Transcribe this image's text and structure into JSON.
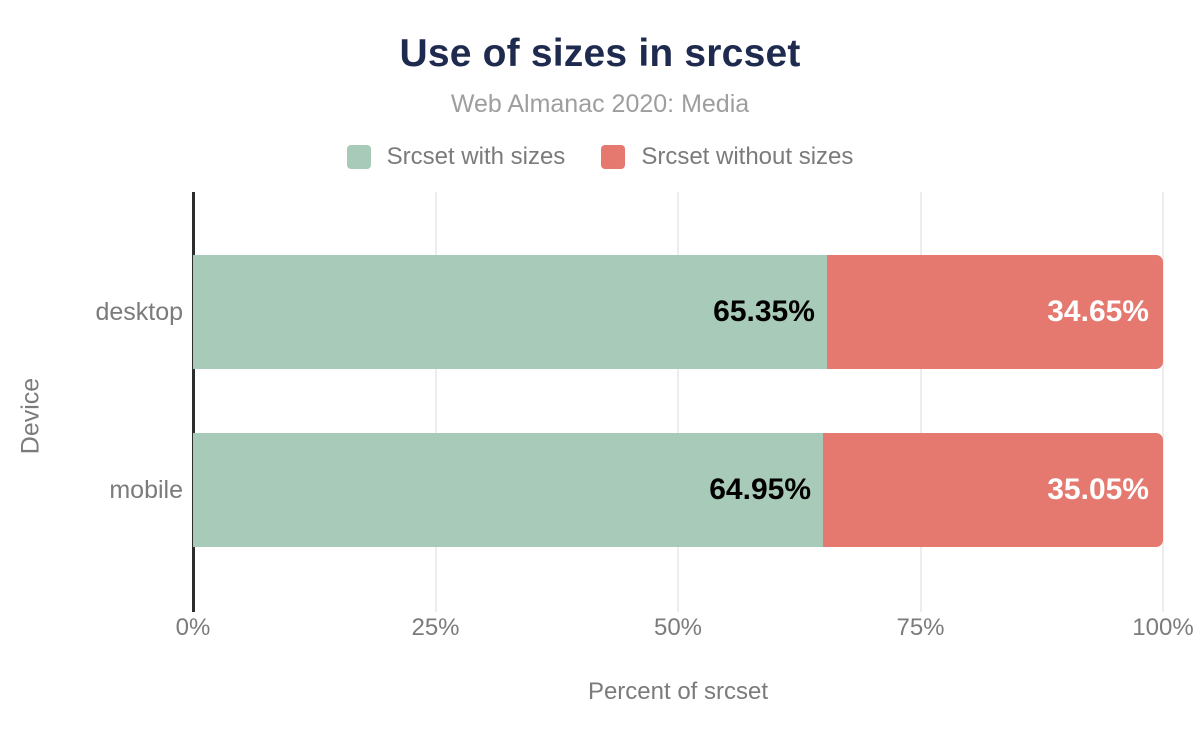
{
  "chart_data": {
    "type": "bar",
    "orientation": "horizontal",
    "stacked": true,
    "title": "Use of sizes in srcset",
    "subtitle": "Web Almanac 2020: Media",
    "xlabel": "Percent of srcset",
    "ylabel": "Device",
    "categories": [
      "desktop",
      "mobile"
    ],
    "series": [
      {
        "name": "Srcset with sizes",
        "color": "#a8cab8",
        "value_label_color": "#000000",
        "values": [
          65.35,
          64.95
        ]
      },
      {
        "name": "Srcset without sizes",
        "color": "#e5796f",
        "value_label_color": "#ffffff",
        "values": [
          34.65,
          35.05
        ]
      }
    ],
    "value_labels": [
      [
        "65.35%",
        "34.65%"
      ],
      [
        "64.95%",
        "35.05%"
      ]
    ],
    "xlim": [
      0,
      100
    ],
    "x_ticks": [
      {
        "label": "0%",
        "value": 0
      },
      {
        "label": "25%",
        "value": 25
      },
      {
        "label": "50%",
        "value": 50
      },
      {
        "label": "75%",
        "value": 75
      },
      {
        "label": "100%",
        "value": 100
      }
    ],
    "grid": "vertical",
    "legend_position": "top"
  },
  "colors": {
    "title": "#1e2b4f",
    "subtitle": "#9e9e9e",
    "axis_text": "#7b7b7b",
    "axis_line": "#2d2d2d",
    "gridline": "#ededed",
    "series_green": "#a8cab8",
    "series_red": "#e5796f"
  }
}
